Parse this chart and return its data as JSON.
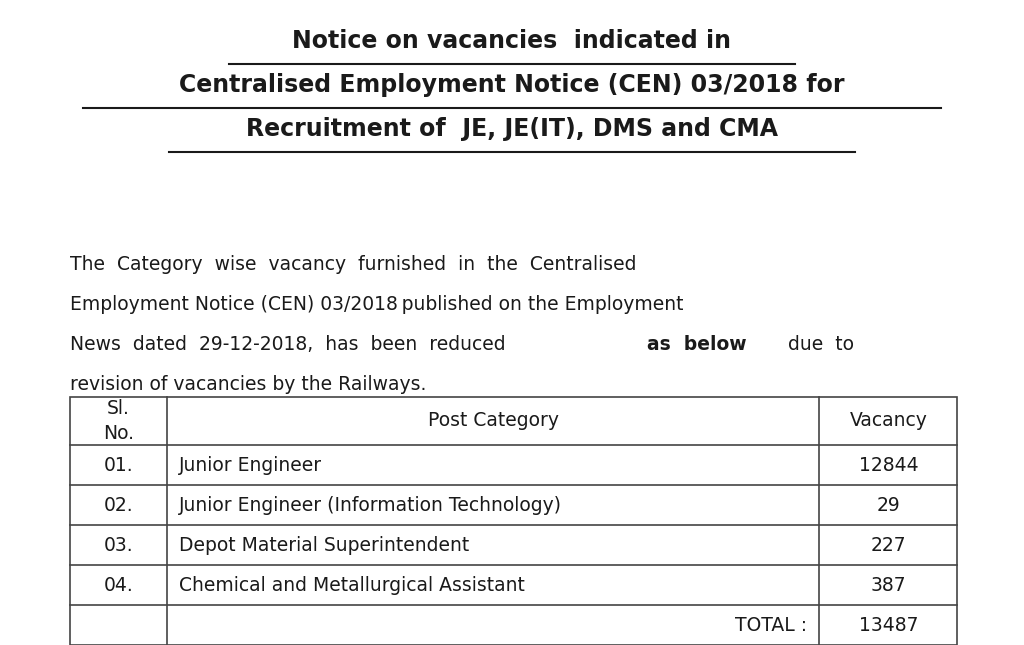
{
  "title_line1": "Notice on vacancies  indicated in",
  "title_line2": "Centralised Employment Notice (CEN) 03/2018 for",
  "title_line3": "Recruitment of  JE, JE(IT), DMS and CMA",
  "para_line1": "The  Category  wise  vacancy  furnished  in  the  Centralised",
  "para_line2": "Employment Notice (CEN) 03/2018 published on the Employment",
  "para_line3": "News  dated  29-12-2018,  has  been  reduced  ",
  "para_bold": "as  below",
  "para_line3_end": "  due  to",
  "para_line4": "revision of vacancies by the Railways.",
  "table_rows": [
    [
      "01.",
      "Junior Engineer",
      "12844"
    ],
    [
      "02.",
      "Junior Engineer (Information Technology)",
      "29"
    ],
    [
      "03.",
      "Depot Material Superintendent",
      "227"
    ],
    [
      "04.",
      "Chemical and Metallurgical Assistant",
      "387"
    ]
  ],
  "total_label": "TOTAL :",
  "total_value": "13487",
  "bg_color": "#ffffff",
  "text_color": "#1a1a1a",
  "border_color": "#444444",
  "title_fontsize": 17,
  "body_fontsize": 13.5,
  "table_fontsize": 13.5
}
